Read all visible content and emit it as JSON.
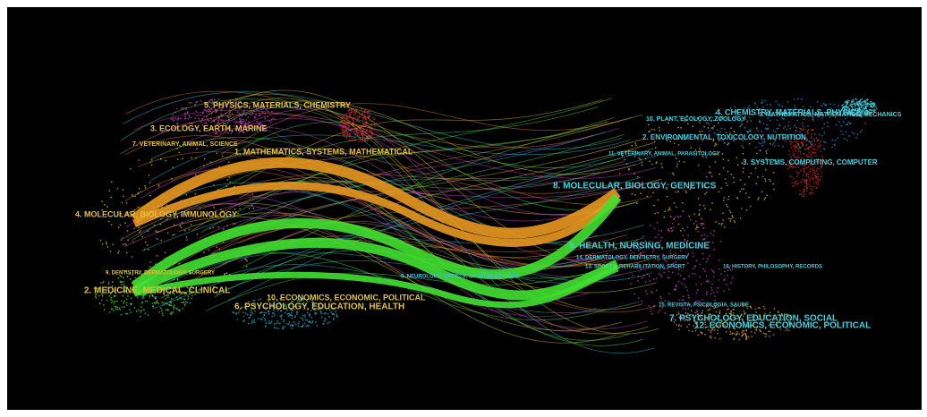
{
  "left_labels": [
    "5. PHYSICS, MATERIALS, CHEMISTRY",
    "3. ECOLOGY, EARTH, MARINE",
    "7. VETERINARY, ANIMAL, SCIENCE",
    "1. MATHEMATICS, SYSTEMS, MATHEMATICAL",
    "4. MOLECULAR, BIOLOGY, IMMUNOLOGY",
    "9. DENTISTRY, DERMATOLOGY, SURGERY",
    "2. MEDICINE, MEDICAL, CLINICAL",
    "10. ECONOMICS, ECONOMIC, POLITICAL",
    "6. PSYCHOLOGY, EDUCATION, HEALTH",
    "8. NEUROLOGY, SPORTS, OPHTHALMOLOGY"
  ],
  "right_labels": [
    "4. CHEMISTRY, MATERIALS, PHYSICS",
    "10. PLANT, ECOLOGY, ZOOLOGY",
    "1. MATHEMATICS, MATHEMATICS, MECHANICS",
    "2. ENVIRONMENTAL, TOXICOLOGY, NUTRITION",
    "11. VETERINARY, ANIMAL, PARASITOLOGY",
    "3. SYSTEMS, COMPUTING, COMPUTER",
    "8. MOLECULAR, BIOLOGY, GENETICS",
    "5. HEALTH, NURSING, MEDICINE",
    "14. DERMATOLOGY, DENTISTRY, SURGERY",
    "13. SPORTS, REHABILITATION, SPORT",
    "16. HISTORY, PHILOSOPHY, RECORDS",
    "15. REVISTA, PSICOLOGIA, SAUDE",
    "7. PSYCHOLOGY, EDUCATION, SOCIAL",
    "12. ECONOMICS, ECONOMIC, POLITICAL"
  ]
}
